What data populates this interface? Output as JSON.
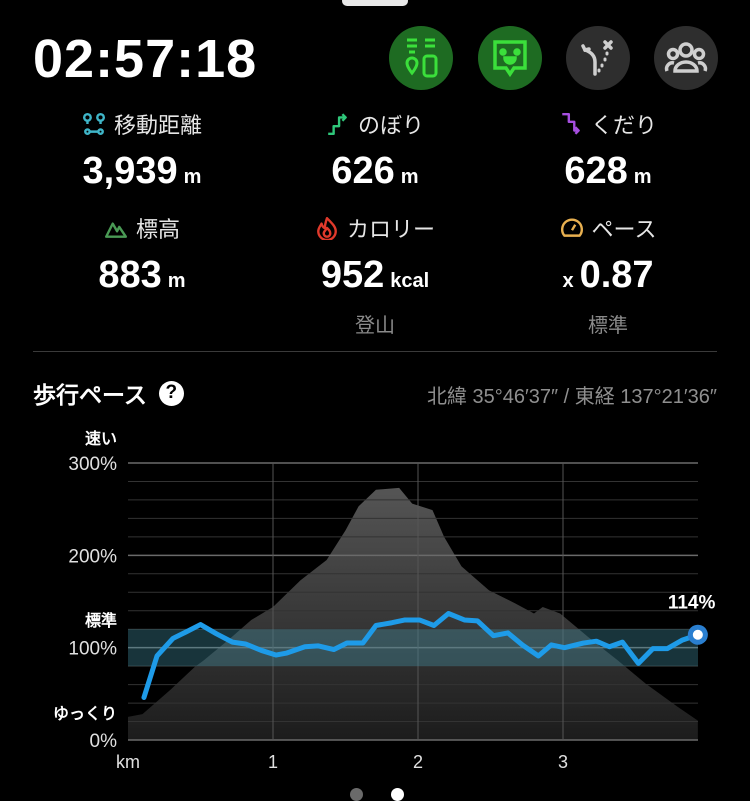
{
  "timer": "02:57:18",
  "toolbar": [
    {
      "name": "beacon-battery-button",
      "icon": "beacon-battery-icon",
      "active": true
    },
    {
      "name": "companion-chat-button",
      "icon": "speech-face-icon",
      "active": true
    },
    {
      "name": "route-deviation-button",
      "icon": "route-off-icon",
      "active": false
    },
    {
      "name": "group-button",
      "icon": "group-icon",
      "active": false
    }
  ],
  "stats": [
    {
      "label": "移動距離",
      "value": "3,939",
      "unit": "m",
      "icon": "route-icon",
      "color": "#3fb5c8"
    },
    {
      "label": "のぼり",
      "value": "626",
      "unit": "m",
      "icon": "ascent-icon",
      "color": "#2fc77a"
    },
    {
      "label": "くだり",
      "value": "628",
      "unit": "m",
      "icon": "descent-icon",
      "color": "#a64fe0"
    },
    {
      "label": "標高",
      "value": "883",
      "unit": "m",
      "icon": "mountain-icon",
      "color": "#4a9a55"
    },
    {
      "label": "カロリー",
      "value": "952",
      "unit": "kcal",
      "icon": "flame-icon",
      "sub": "登山",
      "color": "#e0392b"
    },
    {
      "label": "ペース",
      "prefix": "x",
      "value": "0.87",
      "icon": "speedometer-icon",
      "sub": "標準",
      "color": "#e8b050"
    }
  ],
  "section": {
    "title": "歩行ペース",
    "help": "?",
    "coords": "北緯 35°46′37″ / 東経 137°21′36″"
  },
  "chart_data": {
    "type": "line",
    "xlabel": "km",
    "xticks": [
      1,
      2,
      3
    ],
    "xlim": [
      0,
      3.93
    ],
    "ylim": [
      0,
      300
    ],
    "yticks": [
      {
        "v": 300,
        "label": "300%"
      },
      {
        "v": 200,
        "label": "200%"
      },
      {
        "v": 100,
        "label": "100%"
      },
      {
        "v": 0,
        "label": "0%"
      }
    ],
    "ylabels": {
      "fast": "速い",
      "standard": "標準",
      "slow": "ゆっくり"
    },
    "standard_band": [
      80,
      120
    ],
    "grid": true,
    "line_color": "#1e9be8",
    "end_label": "114%",
    "pace": [
      [
        0.11,
        46
      ],
      [
        0.2,
        91
      ],
      [
        0.31,
        110
      ],
      [
        0.4,
        117
      ],
      [
        0.5,
        125
      ],
      [
        0.61,
        115
      ],
      [
        0.72,
        106
      ],
      [
        0.81,
        104
      ],
      [
        0.92,
        97
      ],
      [
        1.02,
        92
      ],
      [
        1.09,
        94
      ],
      [
        1.22,
        101
      ],
      [
        1.31,
        102
      ],
      [
        1.42,
        98
      ],
      [
        1.51,
        105
      ],
      [
        1.62,
        105
      ],
      [
        1.71,
        124
      ],
      [
        1.82,
        127
      ],
      [
        1.91,
        130
      ],
      [
        2.01,
        130
      ],
      [
        2.11,
        124
      ],
      [
        2.21,
        137
      ],
      [
        2.32,
        130
      ],
      [
        2.41,
        129
      ],
      [
        2.52,
        113
      ],
      [
        2.62,
        116
      ],
      [
        2.72,
        103
      ],
      [
        2.83,
        91
      ],
      [
        2.92,
        103
      ],
      [
        3.01,
        100
      ],
      [
        3.14,
        105
      ],
      [
        3.23,
        107
      ],
      [
        3.32,
        101
      ],
      [
        3.41,
        106
      ],
      [
        3.52,
        83
      ],
      [
        3.62,
        99
      ],
      [
        3.72,
        99
      ],
      [
        3.82,
        108
      ],
      [
        3.93,
        114
      ]
    ],
    "elevation_profile": [
      [
        0,
        25
      ],
      [
        0.1,
        28
      ],
      [
        0.29,
        54
      ],
      [
        0.46,
        79
      ],
      [
        0.52,
        86
      ],
      [
        0.69,
        108
      ],
      [
        0.85,
        130
      ],
      [
        1.0,
        144
      ],
      [
        1.19,
        173
      ],
      [
        1.37,
        195
      ],
      [
        1.5,
        227
      ],
      [
        1.59,
        253
      ],
      [
        1.71,
        271
      ],
      [
        1.87,
        273
      ],
      [
        1.96,
        256
      ],
      [
        2.1,
        249
      ],
      [
        2.18,
        220
      ],
      [
        2.3,
        188
      ],
      [
        2.49,
        162
      ],
      [
        2.67,
        148
      ],
      [
        2.8,
        137
      ],
      [
        2.86,
        144
      ],
      [
        2.98,
        137
      ],
      [
        3.17,
        112
      ],
      [
        3.38,
        86
      ],
      [
        3.57,
        61
      ],
      [
        3.79,
        36
      ],
      [
        3.93,
        21
      ]
    ]
  },
  "pager": {
    "pages": 2,
    "current": 2
  }
}
